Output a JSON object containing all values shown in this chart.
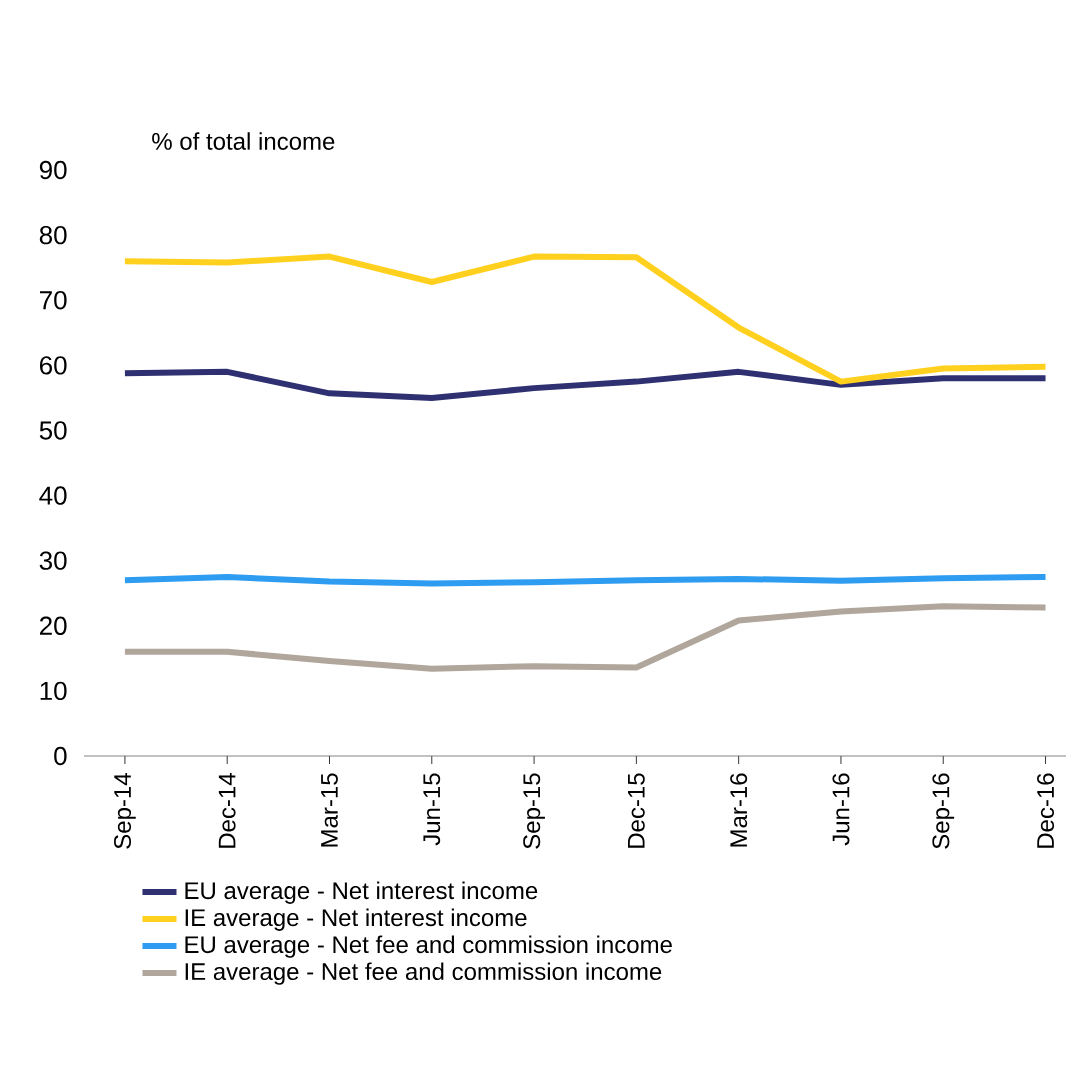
{
  "chart_data": {
    "type": "line",
    "ylabel": "% of total income",
    "categories": [
      "Sep-14",
      "Dec-14",
      "Mar-15",
      "Jun-15",
      "Sep-15",
      "Dec-15",
      "Mar-16",
      "Jun-16",
      "Sep-16",
      "Dec-16"
    ],
    "series": [
      {
        "name": "EU average - Net interest income",
        "color": "#2e3071",
        "values": [
          58.8,
          59,
          55.7,
          55,
          56.5,
          57.5,
          59,
          57,
          58,
          58
        ]
      },
      {
        "name": "IE average - Net interest income",
        "color": "#ffd01e",
        "values": [
          76,
          75.8,
          76.7,
          72.8,
          76.7,
          76.6,
          65.8,
          57.5,
          59.5,
          59.8
        ]
      },
      {
        "name": "EU average - Net fee and commission income",
        "color": "#2e9cf0",
        "values": [
          27,
          27.5,
          26.8,
          26.5,
          26.7,
          27,
          27.2,
          26.9,
          27.3,
          27.5
        ]
      },
      {
        "name": "IE average - Net fee and commission income",
        "color": "#b0a69c",
        "values": [
          16,
          16,
          14.6,
          13.4,
          13.8,
          13.6,
          20.8,
          22.2,
          23,
          22.8
        ]
      }
    ],
    "ylim": [
      0,
      90
    ],
    "yticks": [
      0,
      10,
      20,
      30,
      40,
      50,
      60,
      70,
      80,
      90
    ],
    "grid": false,
    "legend": "bottom",
    "marker": "none",
    "line_style": "solid"
  }
}
